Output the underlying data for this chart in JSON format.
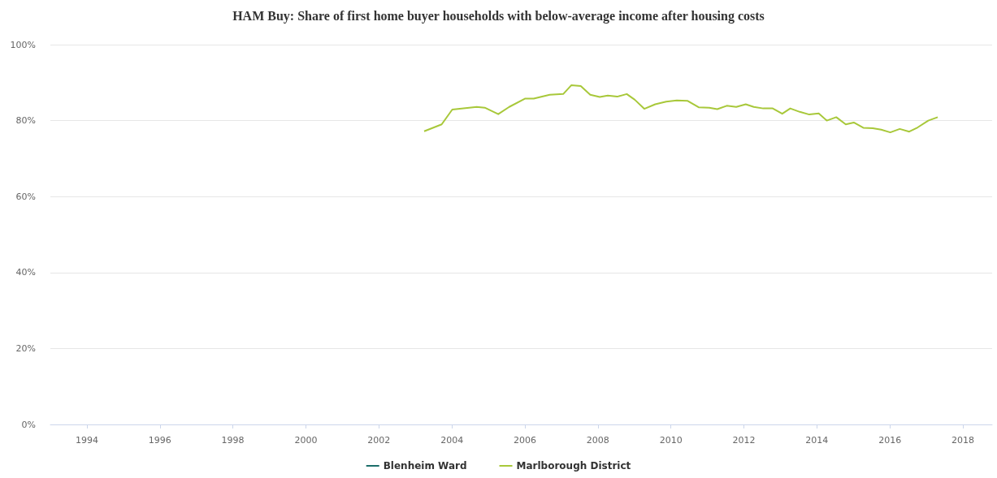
{
  "chart_data": {
    "type": "line",
    "title": "HAM Buy: Share of first home buyer households with below-average income after housing costs",
    "x": [
      2003.24,
      2003.72,
      2004.01,
      2004.68,
      2004.9,
      2005.27,
      2005.57,
      2006.01,
      2006.24,
      2006.68,
      2007.05,
      2007.27,
      2007.53,
      2007.79,
      2008.05,
      2008.27,
      2008.53,
      2008.79,
      2009.01,
      2009.27,
      2009.57,
      2009.87,
      2010.16,
      2010.46,
      2010.76,
      2011.05,
      2011.27,
      2011.53,
      2011.79,
      2012.05,
      2012.27,
      2012.53,
      2012.79,
      2013.05,
      2013.27,
      2013.53,
      2013.79,
      2014.05,
      2014.27,
      2014.53,
      2014.79,
      2015.01,
      2015.27,
      2015.53,
      2015.76,
      2016.01,
      2016.27,
      2016.53,
      2016.76,
      2017.05,
      2017.31
    ],
    "series": [
      {
        "name": "Blenheim Ward",
        "color": "#1c6e6a",
        "values": [
          null,
          null,
          null,
          null,
          null,
          null,
          null,
          null,
          null,
          null,
          null,
          null,
          null,
          null,
          null,
          null,
          null,
          null,
          null,
          null,
          null,
          null,
          null,
          null,
          null,
          null,
          null,
          null,
          null,
          null,
          null,
          null,
          null,
          null,
          null,
          null,
          null,
          null,
          null,
          null,
          null,
          null,
          null,
          null,
          null,
          null,
          null,
          null,
          null,
          null,
          null
        ]
      },
      {
        "name": "Marlborough District",
        "color": "#a8c83a",
        "values": [
          77.2,
          79.0,
          82.9,
          83.6,
          83.4,
          81.7,
          83.6,
          85.8,
          85.8,
          86.8,
          87.0,
          89.3,
          89.1,
          86.8,
          86.2,
          86.6,
          86.3,
          87.0,
          85.5,
          83.1,
          84.3,
          85.0,
          85.3,
          85.2,
          83.5,
          83.4,
          83.0,
          83.9,
          83.6,
          84.3,
          83.6,
          83.2,
          83.2,
          81.8,
          83.2,
          82.3,
          81.6,
          81.9,
          80.0,
          80.9,
          79.0,
          79.5,
          78.1,
          78.0,
          77.6,
          76.9,
          77.8,
          77.1,
          78.2,
          80.0,
          80.9
        ]
      }
    ],
    "xlim": [
      1993,
      2018.8
    ],
    "xticks": [
      1994,
      1996,
      1998,
      2000,
      2002,
      2004,
      2006,
      2008,
      2010,
      2012,
      2014,
      2016,
      2018
    ],
    "ylim": [
      0,
      100
    ],
    "yticks": [
      {
        "value": 0,
        "label": "0%"
      },
      {
        "value": 20,
        "label": "20%"
      },
      {
        "value": 40,
        "label": "40%"
      },
      {
        "value": 60,
        "label": "60%"
      },
      {
        "value": 80,
        "label": "80%"
      },
      {
        "value": 100,
        "label": "100%"
      }
    ],
    "grid": "y",
    "legend": "bottom",
    "marker": "none",
    "line_style": "solid"
  }
}
